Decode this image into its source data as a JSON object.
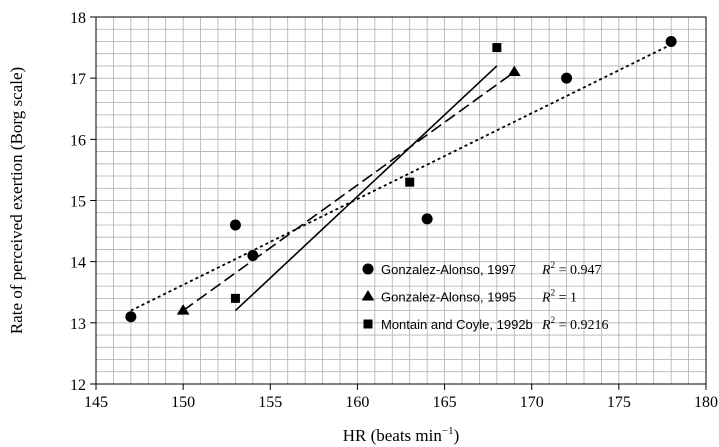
{
  "chart_data": {
    "type": "scatter",
    "xlabel": "HR (beats min",
    "xlabel_sup": "−1",
    "xlabel_close": ")",
    "ylabel": "Rate of perceived exertion (Borg scale)",
    "xlim": [
      145,
      180
    ],
    "ylim": [
      12,
      18
    ],
    "x_ticks": [
      "145",
      "150",
      "155",
      "160",
      "165",
      "170",
      "175",
      "180"
    ],
    "y_ticks": [
      "12",
      "13",
      "14",
      "15",
      "16",
      "17",
      "18"
    ],
    "grid": true,
    "legend_position": "lower-right inside plot",
    "series": [
      {
        "name": "Gonzalez-Alonso, 1997",
        "marker": "circle",
        "line_style": "dotted",
        "r2": "0.947",
        "points": [
          [
            147,
            13.1
          ],
          [
            153,
            14.6
          ],
          [
            154,
            14.1
          ],
          [
            164,
            14.7
          ],
          [
            172,
            17.0
          ],
          [
            178,
            17.6
          ]
        ],
        "fit": [
          [
            147,
            13.2
          ],
          [
            178,
            17.55
          ]
        ]
      },
      {
        "name": "Gonzalez-Alonso, 1995",
        "marker": "triangle",
        "line_style": "dashed",
        "r2": "1",
        "points": [
          [
            150,
            13.2
          ],
          [
            169,
            17.1
          ]
        ],
        "fit": [
          [
            150,
            13.2
          ],
          [
            169,
            17.1
          ]
        ]
      },
      {
        "name": "Montain and Coyle, 1992b",
        "marker": "square",
        "line_style": "solid",
        "r2": "0.9216",
        "points": [
          [
            153,
            13.4
          ],
          [
            163,
            15.3
          ],
          [
            168,
            17.5
          ]
        ],
        "fit": [
          [
            153,
            13.2
          ],
          [
            168,
            17.2
          ]
        ]
      }
    ]
  },
  "legend": {
    "r2_symbol": "R",
    "r2_sup": "2"
  },
  "colors": {
    "ink": "#000000",
    "grid": "#b0b0b0",
    "background": "#ffffff"
  }
}
